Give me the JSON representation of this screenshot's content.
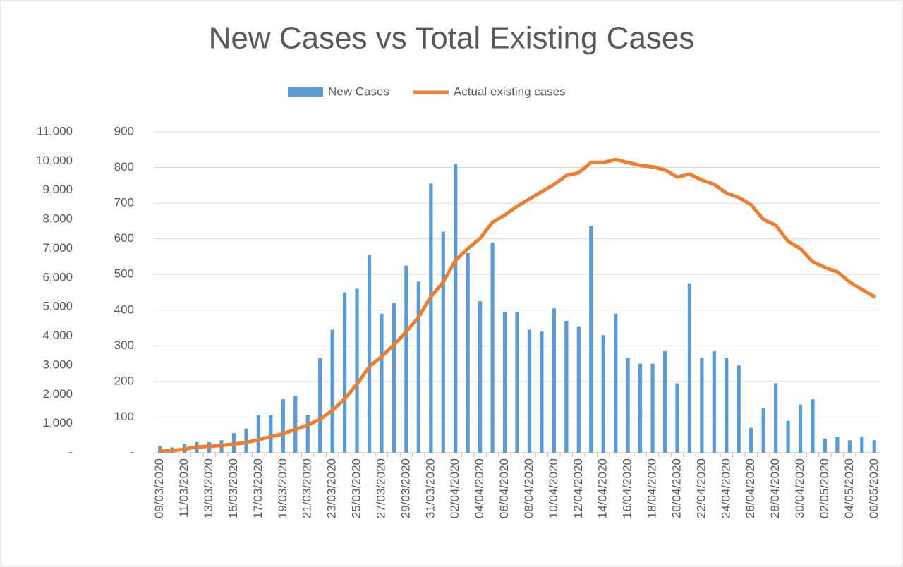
{
  "chart_data": {
    "type": "bar_line",
    "title": "New Cases vs Total Existing Cases",
    "categories": [
      "09/03/2020",
      null,
      "11/03/2020",
      null,
      "13/03/2020",
      null,
      "15/03/2020",
      null,
      "17/03/2020",
      null,
      "19/03/2020",
      null,
      "21/03/2020",
      null,
      "23/03/2020",
      null,
      "25/03/2020",
      null,
      "27/03/2020",
      null,
      "29/03/2020",
      null,
      "31/03/2020",
      null,
      "02/04/2020",
      null,
      "04/04/2020",
      null,
      "06/04/2020",
      null,
      "08/04/2020",
      null,
      "10/04/2020",
      null,
      "12/04/2020",
      null,
      "14/04/2020",
      null,
      "16/04/2020",
      null,
      "18/04/2020",
      null,
      "20/04/2020",
      null,
      "22/04/2020",
      null,
      "24/04/2020",
      null,
      "26/04/2020",
      null,
      "28/04/2020",
      null,
      "30/04/2020",
      null,
      "02/05/2020",
      null,
      "04/05/2020",
      null,
      "06/05/2020"
    ],
    "series": [
      {
        "name": "New Cases",
        "type": "bar",
        "color": "#5b9bd5",
        "values": [
          20,
          15,
          25,
          30,
          30,
          35,
          55,
          68,
          105,
          105,
          150,
          160,
          105,
          265,
          345,
          450,
          460,
          555,
          390,
          420,
          525,
          480,
          755,
          620,
          810,
          560,
          425,
          590,
          395,
          395,
          345,
          340,
          405,
          370,
          355,
          635,
          330,
          390,
          265,
          250,
          250,
          285,
          195,
          475,
          265,
          285,
          265,
          245,
          70,
          125,
          195,
          90,
          135,
          150,
          40,
          45,
          35,
          45,
          35
        ]
      },
      {
        "name": "Actual existing cases",
        "type": "line",
        "axis": "y2",
        "color": "#ed7d31",
        "values": [
          50,
          70,
          120,
          200,
          220,
          250,
          300,
          350,
          450,
          550,
          650,
          800,
          950,
          1150,
          1450,
          1850,
          2350,
          2950,
          3300,
          3700,
          4150,
          4650,
          5350,
          5850,
          6600,
          7000,
          7350,
          7900,
          8150,
          8450,
          8700,
          8950,
          9200,
          9500,
          9600,
          9950,
          9950,
          10050,
          9950,
          9850,
          9800,
          9700,
          9450,
          9550,
          9350,
          9200,
          8900,
          8750,
          8500,
          8000,
          7800,
          7250,
          7000,
          6550,
          6350,
          6200,
          5850,
          5600,
          5350
        ]
      }
    ],
    "ylim": [
      0,
      900
    ],
    "yticks": [
      {
        "value": 0,
        "label": "-"
      },
      100,
      200,
      300,
      400,
      500,
      600,
      700,
      800,
      900
    ],
    "y2lim": [
      0,
      11000
    ],
    "y2ticks": [
      {
        "value": 0,
        "label": "-"
      },
      {
        "value": 1000,
        "label": "1,000"
      },
      {
        "value": 2000,
        "label": "2,000"
      },
      {
        "value": 3000,
        "label": "3,000"
      },
      {
        "value": 4000,
        "label": "4,000"
      },
      {
        "value": 5000,
        "label": "5,000"
      },
      {
        "value": 6000,
        "label": "6,000"
      },
      {
        "value": 7000,
        "label": "7,000"
      },
      {
        "value": 8000,
        "label": "8,000"
      },
      {
        "value": 9000,
        "label": "9,000"
      },
      {
        "value": 10000,
        "label": "10,000"
      },
      {
        "value": 11000,
        "label": "11,000"
      }
    ],
    "grid": true,
    "legend": "top"
  }
}
